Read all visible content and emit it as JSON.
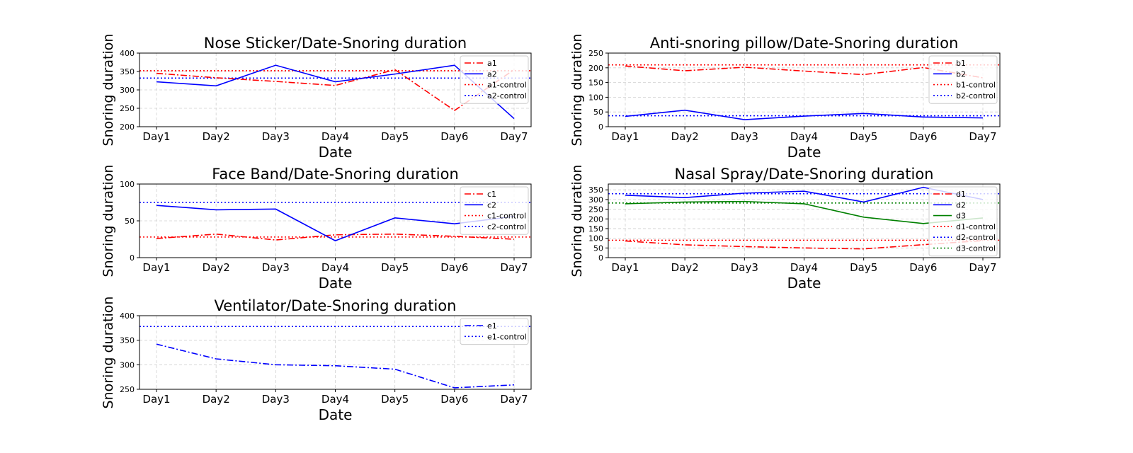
{
  "chart_data": [
    {
      "type": "line",
      "title": "Nose Sticker/Date-Snoring duration",
      "xlabel": "Date",
      "ylabel": "Snoring duration",
      "categories": [
        "Day1",
        "Day2",
        "Day3",
        "Day4",
        "Day5",
        "Day6",
        "Day7"
      ],
      "ylim": [
        200,
        400
      ],
      "yticks": [
        200,
        250,
        300,
        350,
        400
      ],
      "grid": true,
      "legend_position": "upper right",
      "series": [
        {
          "name": "a1",
          "color": "#ff0000",
          "style": "dashdot",
          "values": [
            345,
            333,
            323,
            312,
            355,
            244,
            355
          ]
        },
        {
          "name": "a2",
          "color": "#0000ff",
          "style": "solid",
          "values": [
            322,
            311,
            367,
            322,
            343,
            367,
            222
          ]
        }
      ],
      "controls": [
        {
          "name": "a1-control",
          "color": "#ff0000",
          "style": "dotted",
          "value": 352
        },
        {
          "name": "a2-control",
          "color": "#0000ff",
          "style": "dotted",
          "value": 332
        }
      ]
    },
    {
      "type": "line",
      "title": "Anti-snoring pillow/Date-Snoring duration",
      "xlabel": "Date",
      "ylabel": "Snoring duration",
      "categories": [
        "Day1",
        "Day2",
        "Day3",
        "Day4",
        "Day5",
        "Day6",
        "Day7"
      ],
      "ylim": [
        0,
        250
      ],
      "yticks": [
        0,
        50,
        100,
        150,
        200,
        250
      ],
      "grid": true,
      "legend_position": "upper right",
      "series": [
        {
          "name": "b1",
          "color": "#ff0000",
          "style": "dashdot",
          "values": [
            206,
            190,
            202,
            189,
            177,
            201,
            166
          ]
        },
        {
          "name": "b2",
          "color": "#0000ff",
          "style": "solid",
          "values": [
            35,
            56,
            24,
            36,
            45,
            33,
            30
          ]
        }
      ],
      "controls": [
        {
          "name": "b1-control",
          "color": "#ff0000",
          "style": "dotted",
          "value": 210
        },
        {
          "name": "b2-control",
          "color": "#0000ff",
          "style": "dotted",
          "value": 37
        }
      ]
    },
    {
      "type": "line",
      "title": "Face Band/Date-Snoring duration",
      "xlabel": "Date",
      "ylabel": "Snoring duration",
      "categories": [
        "Day1",
        "Day2",
        "Day3",
        "Day4",
        "Day5",
        "Day6",
        "Day7"
      ],
      "ylim": [
        0,
        100
      ],
      "yticks": [
        0,
        50,
        100
      ],
      "grid": true,
      "legend_position": "upper right",
      "series": [
        {
          "name": "c1",
          "color": "#ff0000",
          "style": "dashdot",
          "values": [
            26,
            32,
            24,
            31,
            32,
            29,
            25
          ]
        },
        {
          "name": "c2",
          "color": "#0000ff",
          "style": "solid",
          "values": [
            71,
            65,
            66,
            23,
            54,
            46,
            56
          ]
        }
      ],
      "controls": [
        {
          "name": "c1-control",
          "color": "#ff0000",
          "style": "dotted",
          "value": 28
        },
        {
          "name": "c2-control",
          "color": "#0000ff",
          "style": "dotted",
          "value": 75
        }
      ]
    },
    {
      "type": "line",
      "title": "Nasal Spray/Date-Snoring duration",
      "xlabel": "Date",
      "ylabel": "Snoring duration",
      "categories": [
        "Day1",
        "Day2",
        "Day3",
        "Day4",
        "Day5",
        "Day6",
        "Day7"
      ],
      "ylim": [
        0,
        380
      ],
      "yticks": [
        0,
        50,
        100,
        150,
        200,
        250,
        300,
        350
      ],
      "grid": true,
      "legend_position": "upper right",
      "series": [
        {
          "name": "d1",
          "color": "#ff0000",
          "style": "dashdot",
          "values": [
            86,
            66,
            57,
            50,
            45,
            67,
            88
          ]
        },
        {
          "name": "d2",
          "color": "#0000ff",
          "style": "solid",
          "values": [
            322,
            310,
            333,
            343,
            287,
            363,
            300
          ]
        },
        {
          "name": "d3",
          "color": "#008000",
          "style": "solid",
          "values": [
            278,
            287,
            290,
            278,
            209,
            176,
            205
          ]
        }
      ],
      "controls": [
        {
          "name": "d1-control",
          "color": "#ff0000",
          "style": "dotted",
          "value": 90
        },
        {
          "name": "d2-control",
          "color": "#0000ff",
          "style": "dotted",
          "value": 330
        },
        {
          "name": "d3-control",
          "color": "#008000",
          "style": "dotted",
          "value": 282
        }
      ]
    },
    {
      "type": "line",
      "title": "Ventilator/Date-Snoring duration",
      "xlabel": "Date",
      "ylabel": "Snoring duration",
      "categories": [
        "Day1",
        "Day2",
        "Day3",
        "Day4",
        "Day5",
        "Day6",
        "Day7"
      ],
      "ylim": [
        250,
        400
      ],
      "yticks": [
        250,
        300,
        350,
        400
      ],
      "grid": true,
      "legend_position": "upper right",
      "series": [
        {
          "name": "e1",
          "color": "#0000ff",
          "style": "dashdot",
          "values": [
            342,
            312,
            300,
            298,
            291,
            253,
            259
          ]
        }
      ],
      "controls": [
        {
          "name": "e1-control",
          "color": "#0000ff",
          "style": "dotted",
          "value": 378
        }
      ]
    }
  ]
}
